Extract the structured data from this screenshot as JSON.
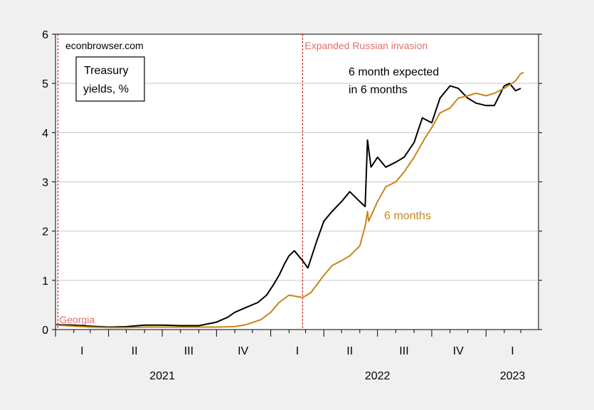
{
  "chart_data": {
    "type": "line",
    "title": "",
    "xlabel": "",
    "ylabel": "",
    "ylim": [
      0,
      6
    ],
    "y_ticks": [
      0,
      1,
      2,
      3,
      4,
      5,
      6
    ],
    "x_range": [
      "2021-01-01",
      "2023-03-31"
    ],
    "grid": true,
    "source_label": "econbrowser.com",
    "box_label": [
      "Treasury",
      "yields, %"
    ],
    "quarter_labels": [
      {
        "label": "I",
        "date": "2021-02-15"
      },
      {
        "label": "II",
        "date": "2021-05-15"
      },
      {
        "label": "III",
        "date": "2021-08-15"
      },
      {
        "label": "IV",
        "date": "2021-11-15"
      },
      {
        "label": "I",
        "date": "2022-02-15"
      },
      {
        "label": "II",
        "date": "2022-05-15"
      },
      {
        "label": "III",
        "date": "2022-08-15"
      },
      {
        "label": "IV",
        "date": "2022-11-15"
      },
      {
        "label": "I",
        "date": "2023-02-15"
      }
    ],
    "year_labels": [
      {
        "label": "2021",
        "date": "2021-07-01"
      },
      {
        "label": "2022",
        "date": "2022-07-01"
      },
      {
        "label": "2023",
        "date": "2023-02-15"
      }
    ],
    "events": [
      {
        "label": "Georgia",
        "date": "2021-01-05",
        "color": "#e07070"
      },
      {
        "label": "Expanded Russian invasion",
        "date": "2022-02-24",
        "color": "#e07070"
      }
    ],
    "series": [
      {
        "name": "6 month expected in 6 months",
        "color": "#000000",
        "points": [
          [
            "2021-01-01",
            0.1
          ],
          [
            "2021-02-01",
            0.09
          ],
          [
            "2021-03-01",
            0.07
          ],
          [
            "2021-04-01",
            0.05
          ],
          [
            "2021-05-01",
            0.06
          ],
          [
            "2021-06-01",
            0.09
          ],
          [
            "2021-07-01",
            0.09
          ],
          [
            "2021-08-01",
            0.08
          ],
          [
            "2021-09-01",
            0.08
          ],
          [
            "2021-10-01",
            0.15
          ],
          [
            "2021-10-20",
            0.25
          ],
          [
            "2021-11-01",
            0.35
          ],
          [
            "2021-11-20",
            0.45
          ],
          [
            "2021-12-10",
            0.55
          ],
          [
            "2021-12-25",
            0.7
          ],
          [
            "2022-01-05",
            0.9
          ],
          [
            "2022-01-15",
            1.1
          ],
          [
            "2022-01-25",
            1.35
          ],
          [
            "2022-02-01",
            1.5
          ],
          [
            "2022-02-10",
            1.6
          ],
          [
            "2022-02-24",
            1.4
          ],
          [
            "2022-03-05",
            1.25
          ],
          [
            "2022-03-20",
            1.8
          ],
          [
            "2022-04-01",
            2.2
          ],
          [
            "2022-04-15",
            2.4
          ],
          [
            "2022-05-01",
            2.6
          ],
          [
            "2022-05-15",
            2.8
          ],
          [
            "2022-06-01",
            2.6
          ],
          [
            "2022-06-10",
            2.5
          ],
          [
            "2022-06-14",
            3.85
          ],
          [
            "2022-06-20",
            3.3
          ],
          [
            "2022-07-01",
            3.5
          ],
          [
            "2022-07-15",
            3.3
          ],
          [
            "2022-08-01",
            3.4
          ],
          [
            "2022-08-15",
            3.5
          ],
          [
            "2022-09-01",
            3.8
          ],
          [
            "2022-09-15",
            4.3
          ],
          [
            "2022-10-01",
            4.2
          ],
          [
            "2022-10-15",
            4.7
          ],
          [
            "2022-11-01",
            4.95
          ],
          [
            "2022-11-15",
            4.9
          ],
          [
            "2022-12-01",
            4.7
          ],
          [
            "2022-12-15",
            4.6
          ],
          [
            "2023-01-01",
            4.55
          ],
          [
            "2023-01-15",
            4.55
          ],
          [
            "2023-02-01",
            4.95
          ],
          [
            "2023-02-10",
            5.0
          ],
          [
            "2023-02-20",
            4.85
          ],
          [
            "2023-03-01",
            4.9
          ]
        ]
      },
      {
        "name": "6 months",
        "color": "#c8861a",
        "points": [
          [
            "2021-01-01",
            0.09
          ],
          [
            "2021-02-01",
            0.07
          ],
          [
            "2021-03-01",
            0.05
          ],
          [
            "2021-04-01",
            0.04
          ],
          [
            "2021-05-01",
            0.04
          ],
          [
            "2021-06-01",
            0.05
          ],
          [
            "2021-07-01",
            0.05
          ],
          [
            "2021-08-01",
            0.05
          ],
          [
            "2021-09-01",
            0.05
          ],
          [
            "2021-10-01",
            0.05
          ],
          [
            "2021-11-01",
            0.06
          ],
          [
            "2021-11-20",
            0.1
          ],
          [
            "2021-12-15",
            0.2
          ],
          [
            "2022-01-01",
            0.35
          ],
          [
            "2022-01-15",
            0.55
          ],
          [
            "2022-02-01",
            0.7
          ],
          [
            "2022-02-24",
            0.65
          ],
          [
            "2022-03-10",
            0.75
          ],
          [
            "2022-04-01",
            1.1
          ],
          [
            "2022-04-15",
            1.3
          ],
          [
            "2022-05-01",
            1.4
          ],
          [
            "2022-05-15",
            1.5
          ],
          [
            "2022-06-01",
            1.7
          ],
          [
            "2022-06-10",
            2.1
          ],
          [
            "2022-06-14",
            2.4
          ],
          [
            "2022-06-16",
            2.2
          ],
          [
            "2022-07-01",
            2.6
          ],
          [
            "2022-07-15",
            2.9
          ],
          [
            "2022-08-01",
            3.0
          ],
          [
            "2022-08-15",
            3.2
          ],
          [
            "2022-09-01",
            3.5
          ],
          [
            "2022-09-20",
            3.9
          ],
          [
            "2022-10-01",
            4.1
          ],
          [
            "2022-10-15",
            4.4
          ],
          [
            "2022-11-01",
            4.5
          ],
          [
            "2022-11-15",
            4.7
          ],
          [
            "2022-12-01",
            4.75
          ],
          [
            "2022-12-15",
            4.8
          ],
          [
            "2023-01-01",
            4.75
          ],
          [
            "2023-01-15",
            4.8
          ],
          [
            "2023-02-01",
            4.9
          ],
          [
            "2023-02-20",
            5.05
          ],
          [
            "2023-03-01",
            5.2
          ],
          [
            "2023-03-06",
            5.22
          ]
        ]
      }
    ]
  }
}
